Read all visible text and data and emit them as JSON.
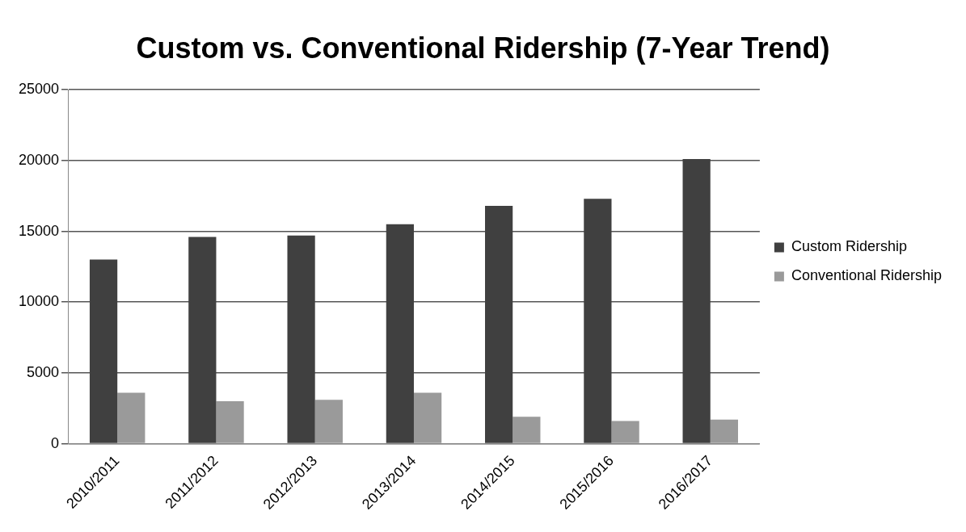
{
  "chart_data": {
    "type": "bar",
    "title": "Custom vs. Conventional Ridership (7-Year Trend)",
    "categories": [
      "2010/2011",
      "2011/2012",
      "2012/2013",
      "2013/2014",
      "2014/2015",
      "2015/2016",
      "2016/2017"
    ],
    "series": [
      {
        "name": "Custom Ridership",
        "color": "#404040",
        "values": [
          13000,
          14600,
          14700,
          15500,
          16800,
          17300,
          20100
        ]
      },
      {
        "name": "Conventional Ridership",
        "color": "#9a9a9a",
        "values": [
          3600,
          3000,
          3100,
          3600,
          1900,
          1600,
          1700
        ]
      }
    ],
    "ylim": [
      0,
      25000
    ],
    "yticks": [
      0,
      5000,
      10000,
      15000,
      20000,
      25000
    ],
    "grid": "y",
    "legend": "right"
  }
}
